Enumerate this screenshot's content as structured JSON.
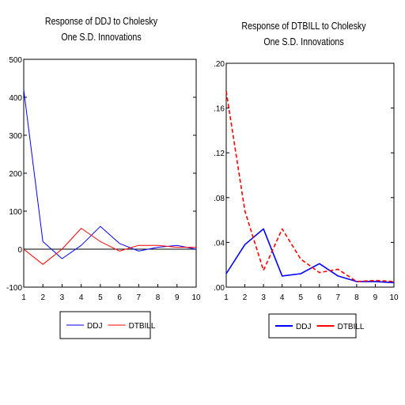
{
  "chart_data": [
    {
      "type": "line",
      "title": "Response of DDJ to Cholesky",
      "subtitle": "One S.D. Innovations",
      "xlabel": "",
      "ylabel": "",
      "x": [
        1,
        2,
        3,
        4,
        5,
        6,
        7,
        8,
        9,
        10
      ],
      "xticks": [
        "1",
        "2",
        "3",
        "4",
        "5",
        "6",
        "7",
        "8",
        "9",
        "10"
      ],
      "yticks": [
        "500",
        "400",
        "300",
        "200",
        "100",
        "0",
        "-100"
      ],
      "ylim": [
        -100,
        500
      ],
      "xlim": [
        1,
        10
      ],
      "zero_line": true,
      "grid": false,
      "legend_position": "bottom-center",
      "series": [
        {
          "name": "DDJ",
          "color": "#0000ff",
          "values": [
            420,
            20,
            -25,
            10,
            60,
            15,
            -5,
            5,
            10,
            0
          ]
        },
        {
          "name": "DTBILL",
          "color": "#ff0000",
          "values": [
            0,
            -40,
            0,
            55,
            20,
            -5,
            10,
            10,
            5,
            5
          ]
        }
      ]
    },
    {
      "type": "line",
      "title": "Response of DTBILL to Cholesky",
      "subtitle": "One S.D. Innovations",
      "xlabel": "",
      "ylabel": "",
      "x": [
        1,
        2,
        3,
        4,
        5,
        6,
        7,
        8,
        9,
        10
      ],
      "xticks": [
        "1",
        "2",
        "3",
        "4",
        "5",
        "6",
        "7",
        "8",
        "9",
        "10"
      ],
      "yticks": [
        ".20",
        ".16",
        ".12",
        ".08",
        ".04",
        ".00"
      ],
      "ylim": [
        0,
        0.2
      ],
      "xlim": [
        1,
        10
      ],
      "zero_line": false,
      "grid": false,
      "legend_position": "bottom-center",
      "series": [
        {
          "name": "DDJ",
          "color": "#0000ff",
          "values": [
            0.012,
            0.038,
            0.052,
            0.01,
            0.012,
            0.021,
            0.01,
            0.005,
            0.005,
            0.004
          ]
        },
        {
          "name": "DTBILL",
          "color": "#ff0000",
          "values": [
            0.175,
            0.068,
            0.015,
            0.052,
            0.025,
            0.013,
            0.016,
            0.005,
            0.006,
            0.005
          ]
        }
      ]
    }
  ]
}
